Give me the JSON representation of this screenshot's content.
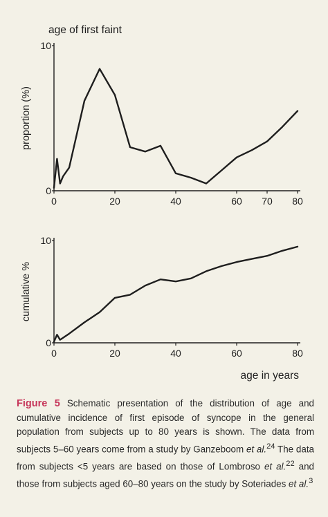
{
  "chart_data": [
    {
      "type": "line",
      "title": "age of first faint",
      "ylabel": "proportion (%)",
      "xlabel": "",
      "xlim": [
        0,
        80
      ],
      "ylim": [
        0,
        10
      ],
      "x_ticks": [
        0,
        20,
        40,
        60,
        70,
        80
      ],
      "y_ticks": [
        0,
        10
      ],
      "grid": false,
      "series": [
        {
          "x": [
            0,
            1,
            2,
            3,
            5,
            10,
            15,
            20,
            25,
            30,
            35,
            40,
            45,
            50,
            55,
            60,
            65,
            70,
            75,
            80
          ],
          "y": [
            0.2,
            2.2,
            0.5,
            1.0,
            1.6,
            6.2,
            8.4,
            6.6,
            3.0,
            2.7,
            3.1,
            1.2,
            0.9,
            0.5,
            1.4,
            2.3,
            2.8,
            3.4,
            4.4,
            5.5
          ]
        }
      ]
    },
    {
      "type": "line",
      "title": "",
      "ylabel": "cumulative %",
      "xlabel": "age in years",
      "xlim": [
        0,
        80
      ],
      "ylim": [
        0,
        10
      ],
      "x_ticks": [
        0,
        20,
        40,
        60,
        80
      ],
      "y_ticks": [
        0,
        10
      ],
      "grid": false,
      "series": [
        {
          "x": [
            0,
            1,
            2,
            5,
            10,
            15,
            20,
            25,
            30,
            35,
            40,
            45,
            50,
            55,
            60,
            65,
            70,
            75,
            80
          ],
          "y": [
            0.1,
            0.8,
            0.3,
            0.9,
            2.0,
            3.0,
            4.4,
            4.7,
            5.6,
            6.2,
            6.0,
            6.3,
            7.0,
            7.5,
            7.9,
            8.2,
            8.5,
            9.0,
            9.4
          ]
        }
      ]
    }
  ],
  "caption": {
    "label": "Figure 5",
    "text_1": " Schematic presentation of the distribution of age and cumulative incidence of first episode of syncope in the general population from subjects up to 80 years is shown. The data from subjects 5–60 years come from a study by Ganzeboom ",
    "ital_1": "et al.",
    "ref_1": "24",
    "text_2": " The data from subjects <5 years are based on those of Lombroso ",
    "ital_2": "et al.",
    "ref_2": "22",
    "text_3": " and those from subjects aged 60–80 years on the study by Soteriades ",
    "ital_3": "et al.",
    "ref_3": "3"
  },
  "colors": {
    "background": "#f3f1e7",
    "line": "#1e1e1e",
    "figure_label": "#c6365a"
  }
}
